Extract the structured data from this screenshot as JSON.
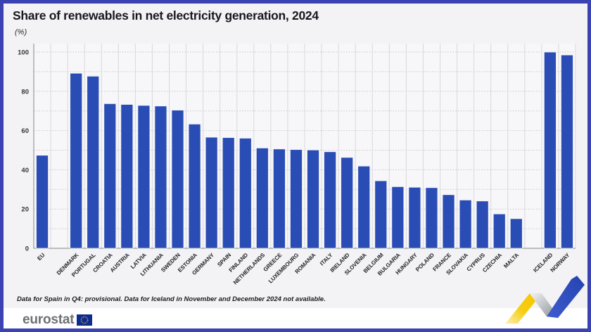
{
  "header": {
    "title": "Share of renewables in net electricity generation, 2024",
    "unit_label": "(%)"
  },
  "footnote": "Data for Spain in Q4: provisional. Data for Iceland in November and December 2024 not available.",
  "logo": {
    "text": "eurostat",
    "flag_blue": "#0e2b8f",
    "flag_stars": "#ffcc00",
    "text_color": "#6e7073"
  },
  "colors": {
    "frame_border": "#3b42b2",
    "background": "#f3f3f5",
    "plot_background": "#f7f7f9",
    "bar_blue": "#2a4cb5",
    "axis_line": "#9a9aa0",
    "grid_vertical": "#d8d8dc",
    "grid_dotted": "#c6c6cb",
    "ribbon_yellow": "#f5c400",
    "ribbon_gray": "#9a9ea4",
    "ribbon_blue": "#2c4ec0"
  },
  "chart_data": {
    "type": "bar",
    "title": "Share of renewables in net electricity generation, 2024",
    "unit": "%",
    "ylabel": "(%)",
    "xlabel": "",
    "ylim": [
      0,
      100
    ],
    "yticks": [
      0,
      20,
      40,
      60,
      80,
      100
    ],
    "grid": "horizontal dotted every 10, vertical solid column separators",
    "legend": "none",
    "bar_color": "#2a4cb5",
    "gap_after_indices": [
      0,
      27
    ],
    "categories": [
      "EU",
      "DENMARK",
      "PORTUGAL",
      "CROATIA",
      "AUSTRIA",
      "LATVIA",
      "LITHUANIA",
      "SWEDEN",
      "ESTONIA",
      "GERMANY",
      "SPAIN",
      "FINLAND",
      "NETHERLANDS",
      "GREECE",
      "LUXEMBOURG",
      "ROMANIA",
      "ITALY",
      "IRELAND",
      "SLOVENIA",
      "BELGIUM",
      "BULGARIA",
      "HUNGARY",
      "POLAND",
      "FRANCE",
      "SLOVAKIA",
      "CYPRUS",
      "CZECHIA",
      "MALTA",
      "ICELAND",
      "NORWAY"
    ],
    "values": [
      47.4,
      89.2,
      87.7,
      73.7,
      73.3,
      72.8,
      72.5,
      70.4,
      63.3,
      56.6,
      56.4,
      56.1,
      51.1,
      50.6,
      50.3,
      50.1,
      49.2,
      46.3,
      41.9,
      34.4,
      31.4,
      31.1,
      30.9,
      27.3,
      24.6,
      24.1,
      17.5,
      15.1,
      100.0,
      98.5
    ]
  }
}
